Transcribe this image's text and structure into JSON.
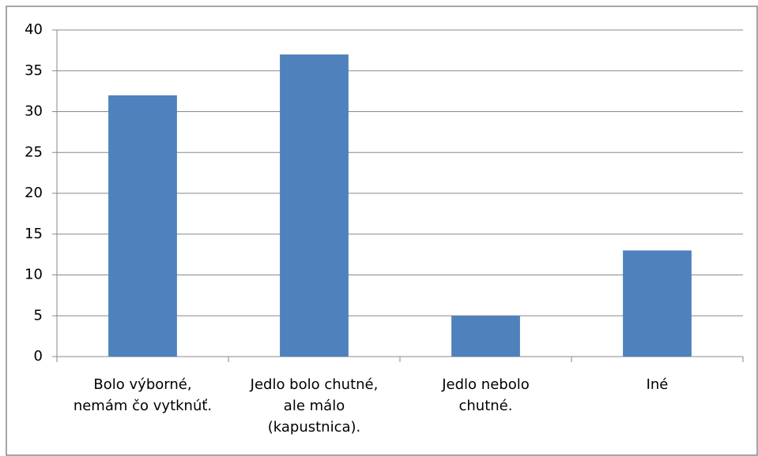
{
  "chart_data": {
    "type": "bar",
    "categories": [
      "Bolo výborné,\nnemám čo vytknúť.",
      "Jedlo bolo chutné,\nale málo\n(kapustnica).",
      "Jedlo nebolo\nchutné.",
      "Iné"
    ],
    "values": [
      32,
      37,
      5,
      13
    ],
    "color": "#4f81bd",
    "ylim": [
      0,
      40
    ],
    "yticks": [
      0,
      5,
      10,
      15,
      20,
      25,
      30,
      35,
      40
    ],
    "grid": true
  }
}
